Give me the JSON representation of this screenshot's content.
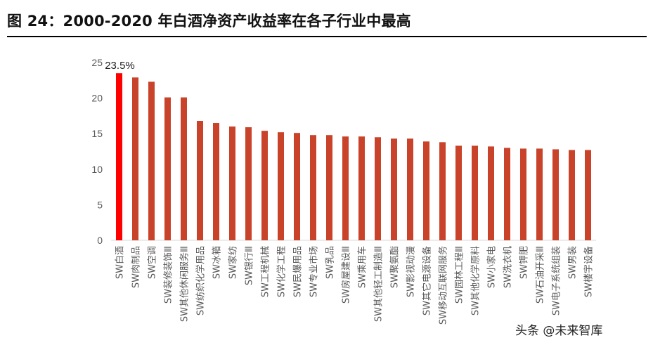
{
  "title": "图 24：2000-2020 年白酒净资产收益率在各子行业中最高",
  "watermark": "头条 @未来智库",
  "colors": {
    "highlight": "#ff0000",
    "bar": "#c9432a",
    "axis": "#d9d9d9",
    "text": "#595959"
  },
  "chart_data": {
    "type": "bar",
    "title": "",
    "xlabel": "",
    "ylabel": "",
    "ylim": [
      0,
      25
    ],
    "yticks": [
      0,
      5,
      10,
      15,
      20,
      25
    ],
    "grid": false,
    "legend": "none",
    "categories": [
      "SW白酒",
      "SW肉制品",
      "SW空调",
      "SW装修装饰Ⅲ",
      "SW其他休闲服务Ⅲ",
      "SW纺织化学用品",
      "SW冰箱",
      "SW家纺",
      "SW银行Ⅲ",
      "SW工程机械",
      "SW化学工程",
      "SW民爆用品",
      "SW专业市场",
      "SW乳品",
      "SW房屋建设Ⅲ",
      "SW乘用车",
      "SW其他轻工制造Ⅲ",
      "SW聚氨酯",
      "SW影视动漫",
      "SW其它电源设备",
      "SW移动互联网服务",
      "SW园林工程Ⅲ",
      "SW其他化学原料",
      "SW小家电",
      "SW洗衣机",
      "SW钾肥",
      "SW石油开采Ⅲ",
      "SW电子系统组装",
      "SW男装",
      "SW楼宇设备"
    ],
    "values": [
      23.5,
      22.9,
      22.3,
      20.1,
      20.1,
      16.8,
      16.5,
      16.0,
      15.9,
      15.4,
      15.2,
      15.1,
      14.8,
      14.8,
      14.6,
      14.6,
      14.5,
      14.3,
      14.3,
      13.9,
      13.8,
      13.3,
      13.3,
      13.2,
      13.0,
      12.9,
      12.9,
      12.8,
      12.7,
      12.7
    ],
    "data_labels": [
      {
        "index": 0,
        "text": "23.5%"
      }
    ]
  }
}
